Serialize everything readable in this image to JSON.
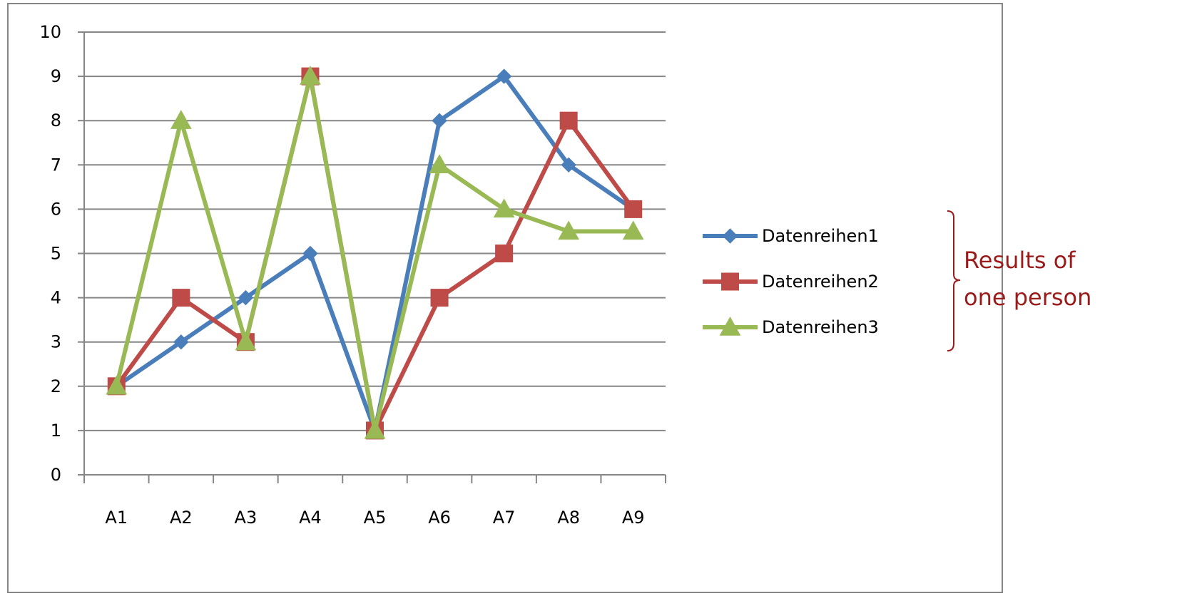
{
  "chart_data": {
    "type": "line",
    "categories": [
      "A1",
      "A2",
      "A3",
      "A4",
      "A5",
      "A6",
      "A7",
      "A8",
      "A9"
    ],
    "ylim": [
      0,
      10
    ],
    "yticks": [
      "0",
      "1",
      "2",
      "3",
      "4",
      "5",
      "6",
      "7",
      "8",
      "9",
      "10"
    ],
    "grid": "horizontal",
    "legend_position": "right",
    "series": [
      {
        "name": "Datenreihen1",
        "color": "#4A7EBB",
        "marker": "diamond",
        "values": [
          2,
          3,
          4,
          5,
          1,
          8,
          9,
          7,
          6
        ]
      },
      {
        "name": "Datenreihen2",
        "color": "#BE4B48",
        "marker": "square",
        "values": [
          2,
          4,
          3,
          9,
          1,
          4,
          5,
          8,
          6
        ]
      },
      {
        "name": "Datenreihen3",
        "color": "#98B954",
        "marker": "triangle",
        "values": [
          2,
          8,
          3,
          9,
          1,
          7,
          6,
          5.5,
          5.5
        ]
      }
    ]
  },
  "annotation": {
    "line1": "Results of",
    "line2": "one person",
    "color": "#9B1B1B"
  }
}
